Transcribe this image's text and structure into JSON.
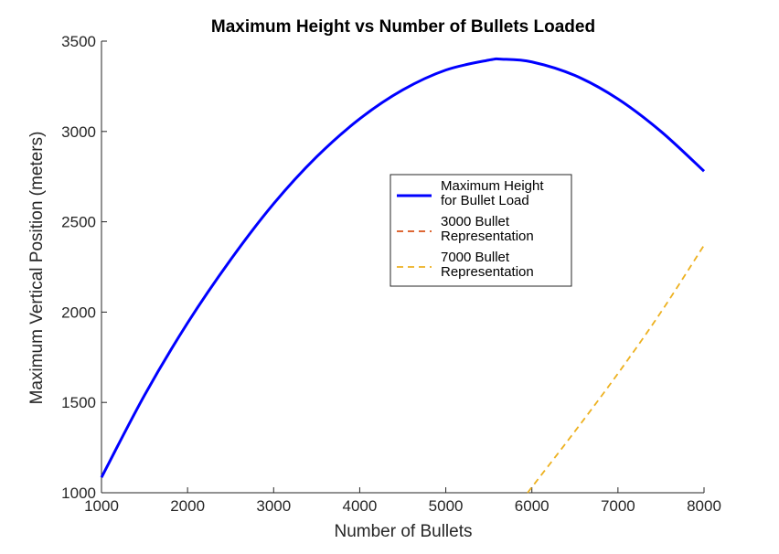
{
  "chart_data": {
    "type": "line",
    "title": "Maximum Height vs Number of Bullets Loaded",
    "xlabel": "Number of Bullets",
    "ylabel": "Maximum Vertical Position (meters)",
    "xlim": [
      1000,
      8000
    ],
    "ylim": [
      1000,
      3500
    ],
    "xticks": [
      "1000",
      "2000",
      "3000",
      "4000",
      "5000",
      "6000",
      "7000",
      "8000"
    ],
    "yticks": [
      "1000",
      "1500",
      "2000",
      "2500",
      "3000",
      "3500"
    ],
    "grid": false,
    "legend_placement": "center-right",
    "series": [
      {
        "name": "Maximum Height for Bullet Load",
        "legend_lines": [
          "Maximum Height",
          "for Bullet Load"
        ],
        "style": "solid",
        "color": "#0000ff",
        "x": [
          1000,
          1500,
          2000,
          2500,
          3000,
          3500,
          4000,
          4500,
          5000,
          5500,
          5650,
          6000,
          6500,
          7000,
          7500,
          8000
        ],
        "y": [
          1085,
          1540,
          1940,
          2290,
          2600,
          2860,
          3070,
          3230,
          3340,
          3395,
          3400,
          3385,
          3310,
          3180,
          3000,
          2780
        ]
      },
      {
        "name": "3000 Bullet Representation",
        "legend_lines": [
          "3000 Bullet",
          "Representation"
        ],
        "style": "dashed",
        "color": "#d95319",
        "x": [],
        "y": []
      },
      {
        "name": "7000 Bullet Representation",
        "legend_lines": [
          "7000 Bullet",
          "Representation"
        ],
        "style": "dashed",
        "color": "#edb120",
        "x": [
          5950,
          6500,
          7000,
          7500,
          8000
        ],
        "y": [
          1000,
          1340,
          1660,
          2000,
          2370
        ]
      }
    ]
  }
}
